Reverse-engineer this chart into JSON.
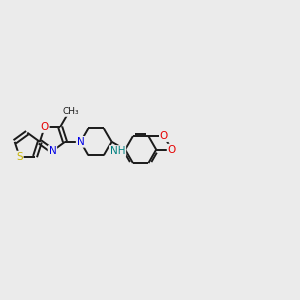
{
  "background_color": "#ebebeb",
  "bond_color": "#1a1a1a",
  "atom_colors": {
    "S": "#c8b400",
    "O": "#e60000",
    "N": "#0000e6",
    "NH": "#008080",
    "C": "#1a1a1a"
  },
  "lw": 1.4,
  "fs": 7.5,
  "figsize": [
    3.0,
    3.0
  ],
  "dpi": 100
}
